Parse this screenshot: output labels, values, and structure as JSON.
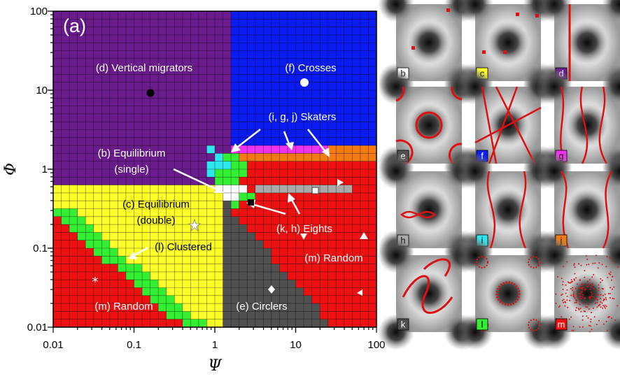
{
  "figure": {
    "main_label": "(a)",
    "x_axis_title": "Ψ",
    "y_axis_title": "Φ",
    "x_ticks": [
      "0.01",
      "0.1",
      "1",
      "10",
      "100"
    ],
    "y_ticks": [
      "100",
      "10",
      "1",
      "0.1",
      "0.01"
    ],
    "region_labels": {
      "vertical": "(d) Vertical migrators",
      "crosses": "(f) Crosses",
      "skaters": "(i, g, j) Skaters",
      "equilibrium_single_1": "(b) Equilibrium",
      "equilibrium_single_2": "(single)",
      "equilibrium_double_1": "(c) Equilibrium",
      "equilibrium_double_2": "(double)",
      "eights": "(k, h) Eights",
      "clustered": "(l) Clustered",
      "random_right": "(m) Random",
      "random_left": "(m) Random",
      "circlers": "(e) Circlers"
    },
    "colors": {
      "vertical": "#6a1b8c",
      "crosses": "#0a1cf2",
      "skaters_magenta": "#ee33ee",
      "skaters_orange": "#f47a12",
      "skaters_cyan": "#2ee6ee",
      "equilibrium_single": "#ffffff",
      "equilibrium_double": "#ffff2a",
      "eights": "#aaaaaa",
      "clustered": "#33ee33",
      "random": "#ee1111",
      "circlers": "#505050",
      "trajectory": "#dd1111"
    },
    "panels": [
      {
        "tag": "b",
        "color": "#ffffff"
      },
      {
        "tag": "c",
        "color": "#ffff2a"
      },
      {
        "tag": "d",
        "color": "#6a1b8c"
      },
      {
        "tag": "e",
        "color": "#505050"
      },
      {
        "tag": "f",
        "color": "#0a1cf2"
      },
      {
        "tag": "g",
        "color": "#ee33ee"
      },
      {
        "tag": "h",
        "color": "#aaaaaa"
      },
      {
        "tag": "i",
        "color": "#2ee6ee"
      },
      {
        "tag": "j",
        "color": "#f47a12"
      },
      {
        "tag": "k",
        "color": "#505050"
      },
      {
        "tag": "l",
        "color": "#33ee33"
      },
      {
        "tag": "m",
        "color": "#ee1111"
      }
    ]
  }
}
